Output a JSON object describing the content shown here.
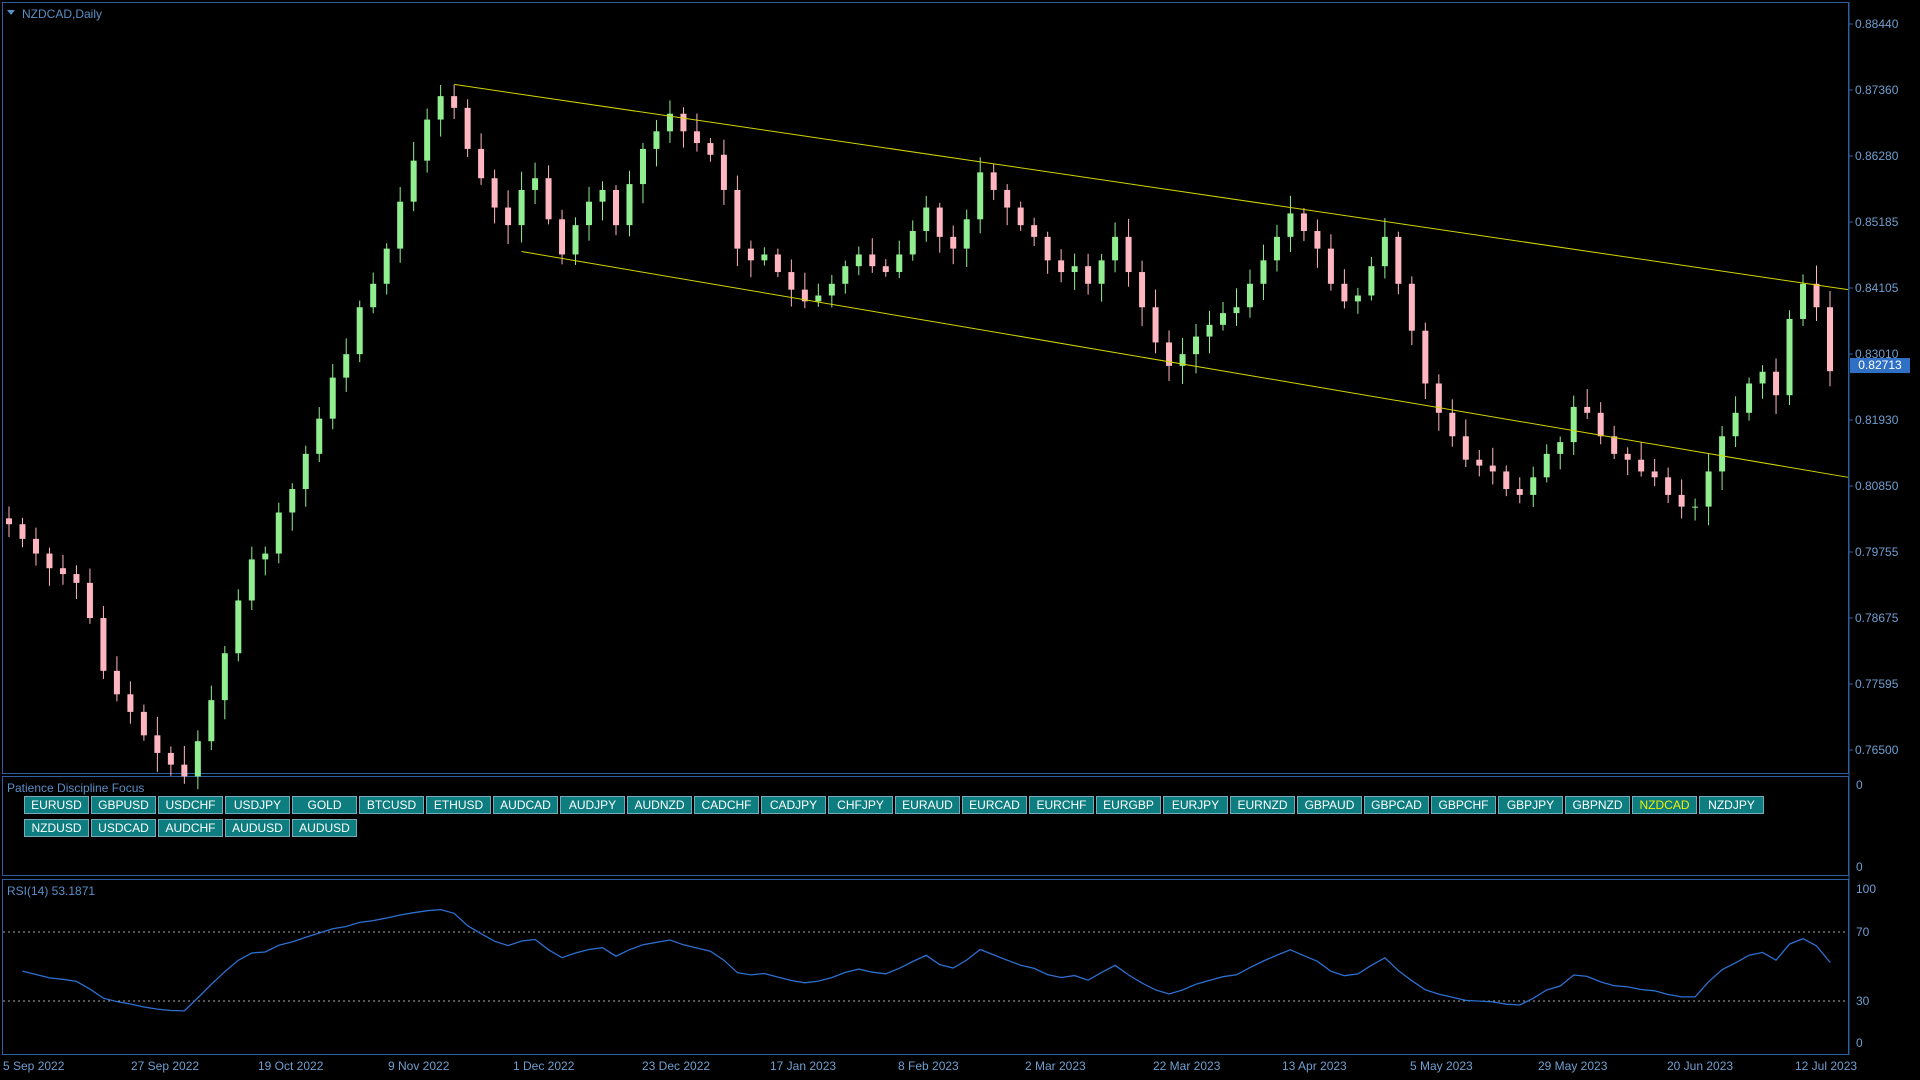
{
  "chart_title": "NZDCAD,Daily",
  "current_price": "0.82713",
  "price_axis": [
    "0.88440",
    "0.87360",
    "0.86280",
    "0.85185",
    "0.84105",
    "0.83010",
    "0.81930",
    "0.80850",
    "0.79755",
    "0.78675",
    "0.77595",
    "0.76500"
  ],
  "date_axis": [
    "5 Sep 2022",
    "27 Sep 2022",
    "19 Oct 2022",
    "9 Nov 2022",
    "1 Dec 2022",
    "23 Dec 2022",
    "17 Jan 2023",
    "8 Feb 2023",
    "2 Mar 2023",
    "22 Mar 2023",
    "13 Apr 2023",
    "5 May 2023",
    "29 May 2023",
    "20 Jun 2023",
    "12 Jul 2023"
  ],
  "indicator_panel": {
    "title": "Patience Discipline Focus",
    "axis": [
      "0",
      "0"
    ],
    "buttons_row1": [
      "EURUSD",
      "GBPUSD",
      "USDCHF",
      "USDJPY",
      "GOLD",
      "BTCUSD",
      "ETHUSD",
      "AUDCAD",
      "AUDJPY",
      "AUDNZD",
      "CADCHF",
      "CADJPY",
      "CHFJPY",
      "EURAUD",
      "EURCAD",
      "EURCHF",
      "EURGBP",
      "EURJPY",
      "EURNZD",
      "GBPAUD",
      "GBPCAD",
      "GBPCHF",
      "GBPJPY",
      "GBPNZD",
      "NZDCAD",
      "NZDJPY"
    ],
    "buttons_row2": [
      "NZDUSD",
      "USDCAD",
      "AUDCHF",
      "AUDUSD",
      "AUDUSD"
    ],
    "active_symbol": "NZDCAD"
  },
  "rsi_panel": {
    "title": "RSI(14) 53.1871",
    "axis": [
      "100",
      "70",
      "30",
      "0"
    ]
  },
  "colors": {
    "bull": "#90ee90",
    "bear": "#ffb6c1",
    "channel": "#d4d400",
    "rsi_line": "#2d6fd0",
    "frame": "#2e5e9e"
  },
  "chart_data": {
    "type": "candlestick",
    "symbol": "NZDCAD",
    "timeframe": "Daily",
    "ylim": [
      0.7625,
      0.8863
    ],
    "close_approx": [
      0.801,
      0.7985,
      0.796,
      0.7935,
      0.7925,
      0.791,
      0.785,
      0.776,
      0.772,
      0.769,
      0.765,
      0.762,
      0.76,
      0.758,
      0.764,
      0.771,
      0.779,
      0.788,
      0.795,
      0.796,
      0.803,
      0.807,
      0.813,
      0.819,
      0.826,
      0.83,
      0.838,
      0.842,
      0.848,
      0.856,
      0.863,
      0.87,
      0.874,
      0.872,
      0.865,
      0.86,
      0.855,
      0.852,
      0.858,
      0.86,
      0.853,
      0.847,
      0.852,
      0.856,
      0.858,
      0.852,
      0.859,
      0.865,
      0.868,
      0.871,
      0.868,
      0.866,
      0.864,
      0.858,
      0.848,
      0.846,
      0.847,
      0.844,
      0.841,
      0.839,
      0.84,
      0.842,
      0.845,
      0.847,
      0.845,
      0.844,
      0.847,
      0.851,
      0.855,
      0.85,
      0.848,
      0.853,
      0.861,
      0.858,
      0.855,
      0.852,
      0.85,
      0.846,
      0.844,
      0.845,
      0.842,
      0.846,
      0.85,
      0.844,
      0.838,
      0.832,
      0.828,
      0.83,
      0.833,
      0.835,
      0.837,
      0.838,
      0.842,
      0.846,
      0.85,
      0.854,
      0.851,
      0.848,
      0.842,
      0.839,
      0.84,
      0.845,
      0.85,
      0.842,
      0.834,
      0.825,
      0.82,
      0.816,
      0.812,
      0.811,
      0.81,
      0.807,
      0.806,
      0.809,
      0.813,
      0.815,
      0.821,
      0.82,
      0.816,
      0.813,
      0.812,
      0.81,
      0.809,
      0.806,
      0.804,
      0.804,
      0.81,
      0.816,
      0.82,
      0.825,
      0.827,
      0.823,
      0.836,
      0.842,
      0.838,
      0.8271
    ],
    "channel": {
      "upper": {
        "from": [
          0.876
        ],
        "to": [
          0.841
        ]
      },
      "lower": {
        "from": [
          0.8475
        ],
        "to": [
          0.809
        ]
      }
    },
    "rsi": {
      "period": 14,
      "last": 53.1871,
      "levels": [
        70,
        30
      ],
      "ylim": [
        0,
        100
      ]
    }
  }
}
